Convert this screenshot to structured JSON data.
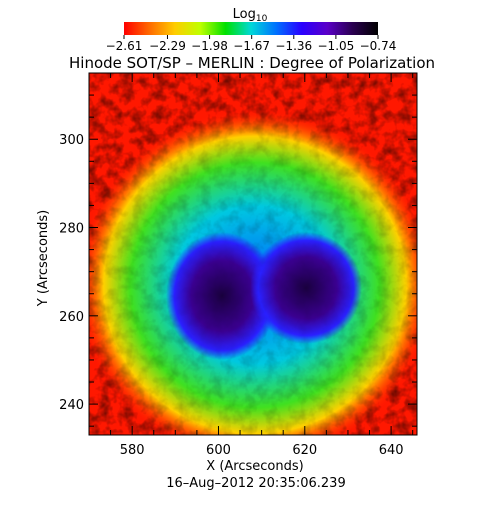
{
  "chart_data": {
    "type": "heatmap",
    "title": "Hinode SOT/SP – MERLIN : Degree of Polarization",
    "xlabel": "X (Arcseconds)",
    "ylabel": "Y (Arcseconds)",
    "timestamp": "16–Aug–2012 20:35:06.239",
    "xlim": [
      570,
      646
    ],
    "ylim": [
      233,
      315
    ],
    "x_ticks": [
      "580",
      "600",
      "620",
      "640"
    ],
    "x_tick_values": [
      580,
      600,
      620,
      640
    ],
    "y_ticks": [
      "240",
      "260",
      "280",
      "300"
    ],
    "y_tick_values": [
      240,
      260,
      280,
      300
    ],
    "colorbar": {
      "label": "Log",
      "label_subscript": "10",
      "tick_labels": [
        "−2.61",
        "−2.29",
        "−1.98",
        "−1.67",
        "−1.36",
        "−1.05",
        "−0.74"
      ],
      "tick_values": [
        -2.61,
        -2.29,
        -1.98,
        -1.67,
        -1.36,
        -1.05,
        -0.74
      ],
      "colors": [
        "#ff0000",
        "#ff6a00",
        "#ffcc00",
        "#bfff00",
        "#00e000",
        "#00d8d8",
        "#0070ff",
        "#2a00ff",
        "#5a00c8",
        "#2a0050",
        "#000000"
      ]
    },
    "features": [
      {
        "name": "umbra-left",
        "center": [
          598,
          263
        ],
        "radius": [
          8,
          9
        ]
      },
      {
        "name": "umbra-right",
        "center": [
          618,
          264
        ],
        "radius": [
          9,
          9
        ]
      }
    ]
  }
}
